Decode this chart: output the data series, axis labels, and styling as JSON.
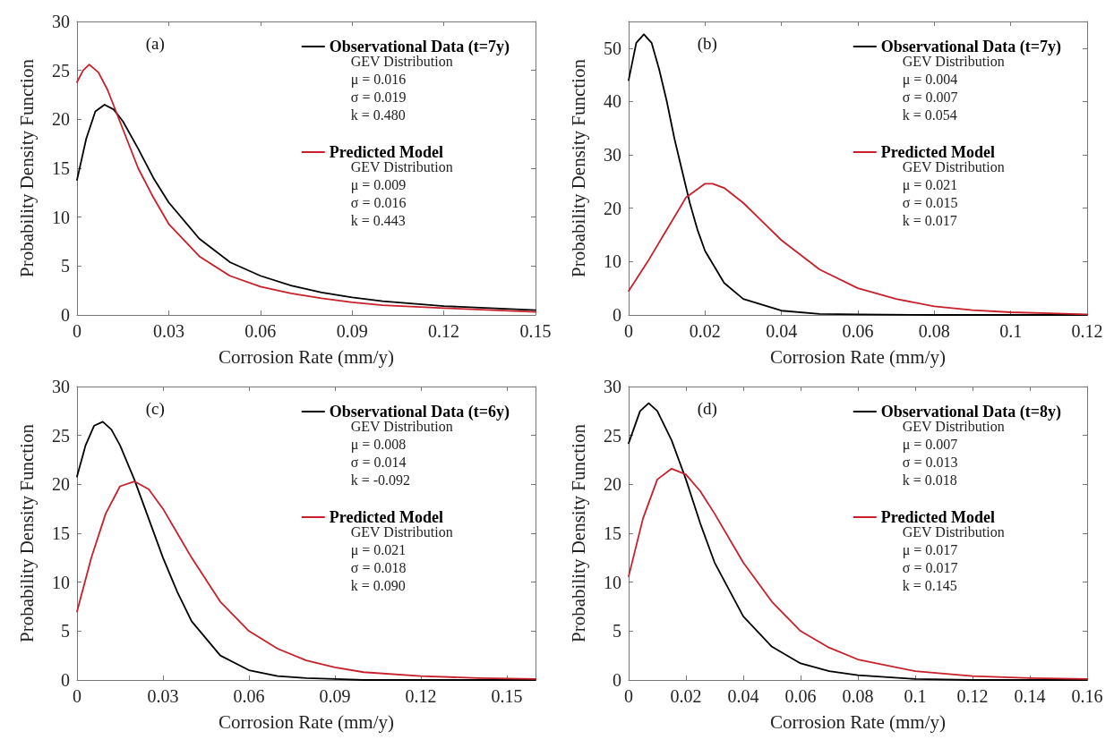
{
  "chart_data": [
    {
      "type": "line",
      "title": "(a)",
      "xlabel": "Corrosion Rate (mm/y)",
      "ylabel": "Probability Density Function",
      "xlim": [
        0,
        0.15
      ],
      "xticks": [
        0,
        0.03,
        0.06,
        0.09,
        0.12,
        0.15
      ],
      "ylim": [
        0,
        30
      ],
      "yticks": [
        0,
        5,
        10,
        15,
        20,
        25,
        30
      ],
      "legend": "top right",
      "grid": false,
      "marker": "none",
      "line_style": "solid",
      "series": [
        {
          "name": "Observational Data (t=7y)",
          "color": "#000000",
          "x": [
            0,
            0.003,
            0.006,
            0.009,
            0.012,
            0.015,
            0.02,
            0.025,
            0.03,
            0.04,
            0.05,
            0.06,
            0.07,
            0.08,
            0.09,
            0.1,
            0.12,
            0.15
          ],
          "values": [
            13.8,
            18,
            20.8,
            21.5,
            21,
            19.8,
            17,
            14,
            11.5,
            7.8,
            5.4,
            4,
            3,
            2.3,
            1.8,
            1.4,
            0.9,
            0.5
          ]
        },
        {
          "name": "Predicted Model",
          "color": "#c8202a",
          "x": [
            0,
            0.002,
            0.004,
            0.007,
            0.01,
            0.015,
            0.02,
            0.025,
            0.03,
            0.04,
            0.05,
            0.06,
            0.07,
            0.08,
            0.09,
            0.1,
            0.12,
            0.15
          ],
          "values": [
            23.8,
            25,
            25.6,
            24.8,
            23,
            19,
            15,
            12,
            9.3,
            6,
            4,
            2.9,
            2.2,
            1.7,
            1.3,
            1,
            0.7,
            0.3
          ]
        }
      ],
      "annotations": [
        "GEV Distribution",
        "μ = 0.016",
        "σ = 0.019",
        "k = 0.480",
        "GEV Distribution",
        "μ = 0.009",
        "σ = 0.016",
        "k = 0.443"
      ]
    },
    {
      "type": "line",
      "title": "(b)",
      "xlabel": "Corrosion Rate (mm/y)",
      "ylabel": "Probability Density Function",
      "xlim": [
        0,
        0.12
      ],
      "xticks": [
        0,
        0.02,
        0.04,
        0.06,
        0.08,
        0.1,
        0.12
      ],
      "ylim": [
        0,
        55
      ],
      "yticks": [
        0,
        10,
        20,
        30,
        40,
        50
      ],
      "legend": "top right",
      "grid": false,
      "marker": "none",
      "line_style": "solid",
      "series": [
        {
          "name": "Observational Data (t=7y)",
          "color": "#000000",
          "x": [
            0,
            0.002,
            0.004,
            0.006,
            0.008,
            0.01,
            0.012,
            0.014,
            0.016,
            0.018,
            0.02,
            0.025,
            0.03,
            0.04,
            0.05,
            0.06,
            0.08,
            0.12
          ],
          "values": [
            44,
            51,
            52.6,
            51,
            46,
            40,
            33,
            27,
            21,
            16,
            12,
            6,
            3,
            0.8,
            0.2,
            0.1,
            0,
            0
          ]
        },
        {
          "name": "Predicted Model",
          "color": "#c8202a",
          "x": [
            0,
            0.005,
            0.01,
            0.015,
            0.02,
            0.022,
            0.025,
            0.03,
            0.035,
            0.04,
            0.05,
            0.06,
            0.07,
            0.08,
            0.09,
            0.1,
            0.11,
            0.12
          ],
          "values": [
            4.5,
            10,
            16,
            22,
            24.6,
            24.6,
            23.8,
            21,
            17.5,
            14,
            8.5,
            5,
            3,
            1.6,
            0.9,
            0.5,
            0.3,
            0.1
          ]
        }
      ],
      "annotations": [
        "GEV Distribution",
        "μ = 0.004",
        "σ = 0.007",
        "k = 0.054",
        "GEV Distribution",
        "μ = 0.021",
        "σ = 0.015",
        "k = 0.017"
      ]
    },
    {
      "type": "line",
      "title": "(c)",
      "xlabel": "Corrosion Rate (mm/y)",
      "ylabel": "Probability Density Function",
      "xlim": [
        0,
        0.16
      ],
      "xticks": [
        0,
        0.03,
        0.06,
        0.09,
        0.12,
        0.15
      ],
      "ylim": [
        0,
        30
      ],
      "yticks": [
        0,
        5,
        10,
        15,
        20,
        25,
        30
      ],
      "legend": "top right",
      "grid": false,
      "marker": "none",
      "line_style": "solid",
      "series": [
        {
          "name": "Observational Data (t=6y)",
          "color": "#000000",
          "x": [
            0,
            0.003,
            0.006,
            0.009,
            0.012,
            0.015,
            0.02,
            0.025,
            0.03,
            0.035,
            0.04,
            0.05,
            0.06,
            0.07,
            0.08,
            0.09,
            0.1,
            0.16
          ],
          "values": [
            20.8,
            24,
            26,
            26.4,
            25.6,
            24,
            20.5,
            16.5,
            12.5,
            9,
            6,
            2.5,
            1,
            0.4,
            0.2,
            0.1,
            0,
            0
          ]
        },
        {
          "name": "Predicted Model",
          "color": "#c8202a",
          "x": [
            0,
            0.005,
            0.01,
            0.015,
            0.02,
            0.025,
            0.03,
            0.035,
            0.04,
            0.05,
            0.06,
            0.07,
            0.08,
            0.09,
            0.1,
            0.12,
            0.14,
            0.16
          ],
          "values": [
            7,
            12.5,
            17,
            19.8,
            20.3,
            19.5,
            17.5,
            15,
            12.5,
            8,
            5,
            3.2,
            2,
            1.3,
            0.8,
            0.4,
            0.2,
            0.1
          ]
        }
      ],
      "annotations": [
        "GEV Distribution",
        "μ = 0.008",
        "σ = 0.014",
        "k = -0.092",
        "GEV Distribution",
        "μ = 0.021",
        "σ = 0.018",
        "k = 0.090"
      ]
    },
    {
      "type": "line",
      "title": "(d)",
      "xlabel": "Corrosion Rate (mm/y)",
      "ylabel": "Probability Density Function",
      "xlim": [
        0,
        0.16
      ],
      "xticks": [
        0,
        0.02,
        0.04,
        0.06,
        0.08,
        0.1,
        0.12,
        0.14,
        0.16
      ],
      "ylim": [
        0,
        30
      ],
      "yticks": [
        0,
        5,
        10,
        15,
        20,
        25,
        30
      ],
      "legend": "top right",
      "grid": false,
      "marker": "none",
      "line_style": "solid",
      "series": [
        {
          "name": "Observational Data (t=8y)",
          "color": "#000000",
          "x": [
            0,
            0.004,
            0.007,
            0.01,
            0.015,
            0.02,
            0.025,
            0.03,
            0.04,
            0.05,
            0.06,
            0.07,
            0.08,
            0.1,
            0.12,
            0.16
          ],
          "values": [
            24.2,
            27.5,
            28.3,
            27.5,
            24.5,
            20.5,
            16,
            12,
            6.5,
            3.4,
            1.7,
            0.9,
            0.5,
            0.1,
            0,
            0
          ]
        },
        {
          "name": "Predicted Model",
          "color": "#c8202a",
          "x": [
            0,
            0.005,
            0.01,
            0.015,
            0.02,
            0.025,
            0.03,
            0.04,
            0.05,
            0.06,
            0.07,
            0.08,
            0.1,
            0.12,
            0.14,
            0.16
          ],
          "values": [
            10.6,
            16.5,
            20.5,
            21.6,
            21,
            19.3,
            17,
            12,
            8,
            5,
            3.3,
            2.1,
            0.9,
            0.4,
            0.2,
            0.1
          ]
        }
      ],
      "annotations": [
        "GEV Distribution",
        "μ = 0.007",
        "σ = 0.013",
        "k = 0.018",
        "GEV Distribution",
        "μ = 0.017",
        "σ = 0.017",
        "k = 0.145"
      ]
    }
  ]
}
